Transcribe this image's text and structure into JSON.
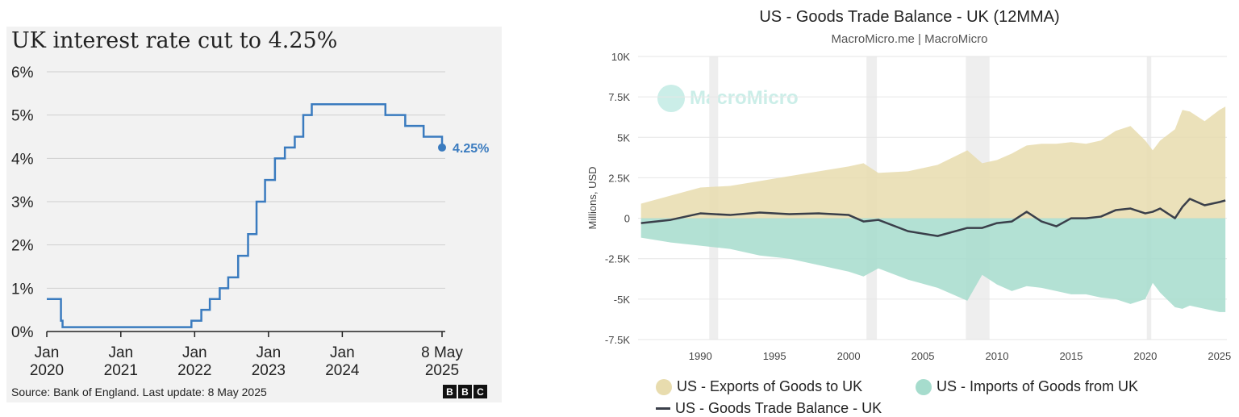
{
  "left": {
    "title": "UK interest rate cut to 4.25%",
    "source": "Source: Bank of England. Last update: 8 May 2025",
    "logo_letters": [
      "B",
      "B",
      "C"
    ],
    "end_label": "4.25%",
    "colors": {
      "line": "#3a7bbf",
      "grid": "#cfcfcf",
      "axis": "#222222",
      "panel": "#f2f2f2"
    }
  },
  "right": {
    "title": "US - Goods Trade Balance - UK (12MMA)",
    "subtitle": "MacroMicro.me | MacroMicro",
    "watermark": "MacroMicro",
    "ylabel": "Millions, USD",
    "legend": {
      "exports": "US - Exports of Goods to UK",
      "imports": "US - Imports of Goods from UK",
      "balance": "US - Goods Trade Balance - UK"
    },
    "colors": {
      "exports": "#e8dcae",
      "imports": "#a6dccd",
      "balance": "#3a3f4a",
      "recession": "#eeeeee",
      "grid": "#e6e6e6"
    }
  },
  "chart_data": [
    {
      "type": "line",
      "title": "UK interest rate cut to 4.25%",
      "xlabel": "",
      "ylabel": "",
      "ylim": [
        0,
        6
      ],
      "yticks": [
        "0%",
        "1%",
        "2%",
        "3%",
        "4%",
        "5%",
        "6%"
      ],
      "xticks": [
        {
          "x": "2020-01-01",
          "line1": "Jan",
          "line2": "2020"
        },
        {
          "x": "2021-01-01",
          "line1": "Jan",
          "line2": "2021"
        },
        {
          "x": "2022-01-01",
          "line1": "Jan",
          "line2": "2022"
        },
        {
          "x": "2023-01-01",
          "line1": "Jan",
          "line2": "2023"
        },
        {
          "x": "2024-01-01",
          "line1": "Jan",
          "line2": "2024"
        },
        {
          "x": "2025-05-08",
          "line1": "8 May",
          "line2": "2025"
        }
      ],
      "grid": true,
      "step": true,
      "series": [
        {
          "points": [
            [
              "2020-01-01",
              0.75
            ],
            [
              "2020-03-11",
              0.25
            ],
            [
              "2020-03-19",
              0.1
            ],
            [
              "2021-12-16",
              0.25
            ],
            [
              "2022-02-03",
              0.5
            ],
            [
              "2022-03-17",
              0.75
            ],
            [
              "2022-05-05",
              1.0
            ],
            [
              "2022-06-16",
              1.25
            ],
            [
              "2022-08-04",
              1.75
            ],
            [
              "2022-09-22",
              2.25
            ],
            [
              "2022-11-03",
              3.0
            ],
            [
              "2022-12-15",
              3.5
            ],
            [
              "2023-02-02",
              4.0
            ],
            [
              "2023-03-23",
              4.25
            ],
            [
              "2023-05-11",
              4.5
            ],
            [
              "2023-06-22",
              5.0
            ],
            [
              "2023-08-03",
              5.25
            ],
            [
              "2024-08-01",
              5.0
            ],
            [
              "2024-11-07",
              4.75
            ],
            [
              "2025-02-06",
              4.5
            ],
            [
              "2025-05-08",
              4.25
            ]
          ]
        }
      ],
      "annotation": {
        "x": "2025-05-08",
        "y": 4.25,
        "label": "4.25%"
      }
    },
    {
      "type": "area",
      "title": "US - Goods Trade Balance - UK (12MMA)",
      "subtitle": "MacroMicro.me | MacroMicro",
      "xlabel": "",
      "ylabel": "Millions, USD",
      "xlim": [
        1985.8,
        2025.5
      ],
      "ylim": [
        -7500,
        10000
      ],
      "yticks": [
        -7500,
        -5000,
        -2500,
        0,
        2500,
        5000,
        7500,
        10000
      ],
      "ytick_labels": [
        "-7.5K",
        "-5K",
        "-2.5K",
        "0",
        "2.5K",
        "5K",
        "7.5K",
        "10K"
      ],
      "xticks": [
        1990,
        1995,
        2000,
        2005,
        2010,
        2015,
        2020,
        2025
      ],
      "recessions": [
        [
          1990.6,
          1991.2
        ],
        [
          2001.2,
          2001.9
        ],
        [
          2007.9,
          2009.5
        ],
        [
          2020.1,
          2020.4
        ]
      ],
      "grid": true,
      "legend_position": "bottom",
      "x": [
        1986,
        1988,
        1990,
        1992,
        1994,
        1996,
        1998,
        2000,
        2001,
        2002,
        2004,
        2006,
        2008,
        2009,
        2010,
        2011,
        2012,
        2013,
        2014,
        2015,
        2016,
        2017,
        2018,
        2019,
        2020,
        2020.5,
        2021,
        2022,
        2022.5,
        2023,
        2024,
        2025,
        2025.4
      ],
      "series": [
        {
          "name": "US - Exports of Goods to UK",
          "values": [
            900,
            1400,
            1900,
            2000,
            2300,
            2600,
            2900,
            3200,
            3400,
            2800,
            2900,
            3300,
            4200,
            3400,
            3600,
            4000,
            4500,
            4600,
            4600,
            4700,
            4600,
            4800,
            5400,
            5700,
            4800,
            4200,
            4800,
            5500,
            6700,
            6600,
            6000,
            6700,
            6900
          ]
        },
        {
          "name": "US - Imports of Goods from UK",
          "values": [
            -1200,
            -1500,
            -1700,
            -1900,
            -2300,
            -2500,
            -2900,
            -3300,
            -3600,
            -3100,
            -3800,
            -4300,
            -5100,
            -3500,
            -4100,
            -4500,
            -4200,
            -4300,
            -4500,
            -4700,
            -4700,
            -4900,
            -5000,
            -5300,
            -5000,
            -4000,
            -4600,
            -5500,
            -5600,
            -5400,
            -5600,
            -5800,
            -5800
          ]
        },
        {
          "name": "US - Goods Trade Balance - UK",
          "values": [
            -300,
            -100,
            300,
            200,
            350,
            250,
            300,
            200,
            -200,
            -100,
            -800,
            -1100,
            -600,
            -600,
            -300,
            -200,
            400,
            -200,
            -500,
            0,
            0,
            100,
            500,
            600,
            300,
            400,
            600,
            0,
            700,
            1200,
            800,
            1000,
            1100
          ]
        }
      ]
    }
  ]
}
